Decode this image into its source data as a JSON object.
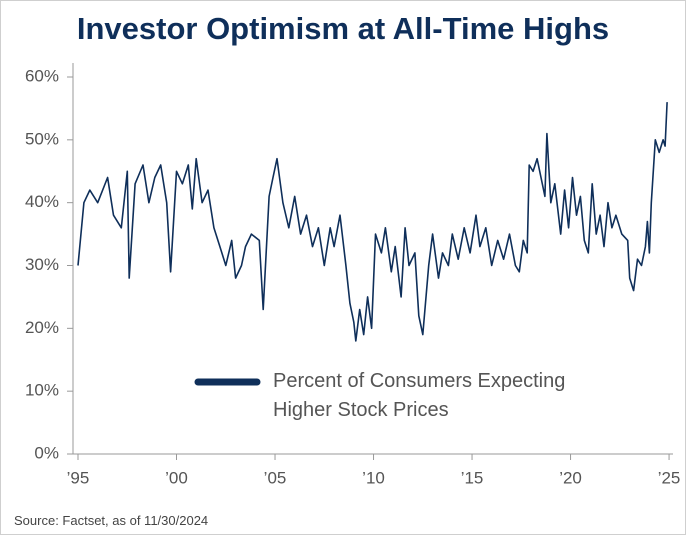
{
  "chart_data": {
    "type": "line",
    "title": "Investor Optimism at All-Time Highs",
    "source": "Source: Factset, as of 11/30/2024",
    "x": [
      1995.0,
      1995.3,
      1995.6,
      1996.0,
      1996.5,
      1996.8,
      1997.2,
      1997.5,
      1997.6,
      1997.9,
      1998.3,
      1998.6,
      1998.9,
      1999.2,
      1999.5,
      1999.7,
      2000.0,
      2000.3,
      2000.6,
      2000.8,
      2001.0,
      2001.3,
      2001.6,
      2001.9,
      2002.2,
      2002.5,
      2002.8,
      2003.0,
      2003.3,
      2003.5,
      2003.8,
      2004.2,
      2004.4,
      2004.7,
      2004.9,
      2005.1,
      2005.4,
      2005.7,
      2006.0,
      2006.3,
      2006.6,
      2006.9,
      2007.2,
      2007.5,
      2007.8,
      2008.0,
      2008.3,
      2008.6,
      2008.8,
      2009.0,
      2009.1,
      2009.3,
      2009.5,
      2009.7,
      2009.9,
      2010.1,
      2010.4,
      2010.6,
      2010.9,
      2011.1,
      2011.4,
      2011.6,
      2011.8,
      2012.1,
      2012.3,
      2012.5,
      2012.8,
      2013.0,
      2013.3,
      2013.5,
      2013.8,
      2014.0,
      2014.3,
      2014.6,
      2014.9,
      2015.2,
      2015.4,
      2015.7,
      2016.0,
      2016.3,
      2016.6,
      2016.9,
      2017.2,
      2017.4,
      2017.6,
      2017.8,
      2017.9,
      2018.1,
      2018.3,
      2018.5,
      2018.7,
      2018.8,
      2019.0,
      2019.2,
      2019.5,
      2019.7,
      2019.9,
      2020.1,
      2020.3,
      2020.5,
      2020.7,
      2020.9,
      2021.1,
      2021.3,
      2021.5,
      2021.7,
      2021.9,
      2022.1,
      2022.3,
      2022.6,
      2022.9,
      2023.0,
      2023.2,
      2023.4,
      2023.6,
      2023.8,
      2023.9,
      2024.0,
      2024.1,
      2024.3,
      2024.5,
      2024.7,
      2024.8,
      2024.9
    ],
    "series": [
      {
        "name": "Percent of Consumers Expecting Higher Stock Prices",
        "color": "#0f2f5a",
        "values": [
          30,
          40,
          42,
          40,
          44,
          38,
          36,
          45,
          28,
          43,
          46,
          40,
          44,
          46,
          40,
          29,
          45,
          43,
          46,
          39,
          47,
          40,
          42,
          36,
          33,
          30,
          34,
          28,
          30,
          33,
          35,
          34,
          23,
          41,
          44,
          47,
          40,
          36,
          41,
          35,
          38,
          33,
          36,
          30,
          36,
          33,
          38,
          30,
          24,
          21,
          18,
          23,
          19,
          25,
          20,
          35,
          32,
          36,
          29,
          33,
          25,
          36,
          30,
          32,
          22,
          19,
          30,
          35,
          28,
          32,
          30,
          35,
          31,
          36,
          32,
          38,
          33,
          36,
          30,
          34,
          31,
          35,
          30,
          29,
          34,
          32,
          46,
          45,
          47,
          44,
          41,
          51,
          40,
          43,
          35,
          42,
          36,
          44,
          38,
          41,
          34,
          32,
          43,
          35,
          38,
          33,
          40,
          36,
          38,
          35,
          34,
          28,
          26,
          31,
          30,
          33,
          37,
          32,
          40,
          50,
          48,
          50,
          49,
          56
        ]
      }
    ],
    "xlim": [
      1995,
      2025.2
    ],
    "xticks": [
      {
        "value": 1995,
        "label": "’95"
      },
      {
        "value": 2000,
        "label": "’00"
      },
      {
        "value": 2005,
        "label": "’05"
      },
      {
        "value": 2010,
        "label": "’10"
      },
      {
        "value": 2015,
        "label": "’15"
      },
      {
        "value": 2020,
        "label": "’20"
      },
      {
        "value": 2025,
        "label": "’25"
      }
    ],
    "ylim": [
      0,
      60
    ],
    "yticks": [
      {
        "value": 0,
        "label": "0%"
      },
      {
        "value": 10,
        "label": "10%"
      },
      {
        "value": 20,
        "label": "20%"
      },
      {
        "value": 30,
        "label": "30%"
      },
      {
        "value": 40,
        "label": "40%"
      },
      {
        "value": 50,
        "label": "50%"
      },
      {
        "value": 60,
        "label": "60%"
      }
    ]
  }
}
